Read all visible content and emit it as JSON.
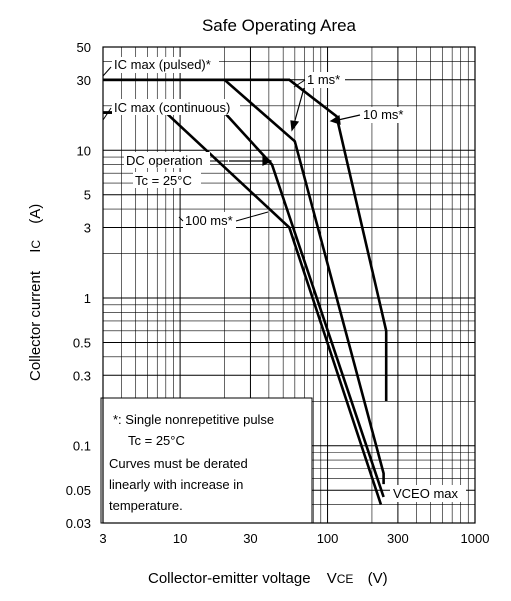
{
  "chart_data": {
    "type": "line",
    "title": "Safe Operating Area",
    "xlabel": {
      "text": "Collector-emitter voltage",
      "symbol": "V",
      "subscript": "CE",
      "unit": "(V)"
    },
    "ylabel": {
      "text": "Collector current",
      "symbol": "I",
      "subscript": "C",
      "unit": "(A)"
    },
    "x_scale": "log",
    "y_scale": "log",
    "xlim": [
      3,
      1000
    ],
    "ylim": [
      0.03,
      50
    ],
    "x_ticks": [
      {
        "value": 3,
        "label": "3"
      },
      {
        "value": 10,
        "label": "10"
      },
      {
        "value": 30,
        "label": "30"
      },
      {
        "value": 100,
        "label": "100"
      },
      {
        "value": 300,
        "label": "300"
      },
      {
        "value": 1000,
        "label": "1000"
      }
    ],
    "y_ticks": [
      {
        "value": 50,
        "label": "50"
      },
      {
        "value": 30,
        "label": "30"
      },
      {
        "value": 10,
        "label": "10"
      },
      {
        "value": 5,
        "label": "5"
      },
      {
        "value": 3,
        "label": "3"
      },
      {
        "value": 1,
        "label": "1"
      },
      {
        "value": 0.5,
        "label": "0.5"
      },
      {
        "value": 0.3,
        "label": "0.3"
      },
      {
        "value": 0.1,
        "label": "0.1"
      },
      {
        "value": 0.05,
        "label": "0.05"
      },
      {
        "value": 0.03,
        "label": "0.03"
      }
    ],
    "grid": true,
    "series": [
      {
        "points": [
          [
            3,
            30
          ],
          [
            55,
            30
          ],
          [
            115,
            17
          ],
          [
            250,
            0.6
          ],
          [
            250,
            0.2
          ]
        ]
      },
      {
        "points": [
          [
            3,
            30
          ],
          [
            20,
            30
          ],
          [
            60,
            11.5
          ],
          [
            240,
            0.065
          ],
          [
            240,
            0.055
          ]
        ]
      },
      {
        "points": [
          [
            3,
            18
          ],
          [
            20,
            18
          ],
          [
            42,
            8
          ],
          [
            240,
            0.045
          ]
        ]
      },
      {
        "points": [
          [
            3,
            18
          ],
          [
            8,
            18
          ],
          [
            55,
            3
          ],
          [
            230,
            0.04
          ]
        ]
      }
    ],
    "annotations": [
      {
        "id": "ic-pulsed",
        "text": "IC max (pulsed)*"
      },
      {
        "id": "ic-cont",
        "text": "IC max (continuous)"
      },
      {
        "id": "one-ms",
        "text": "1 ms*"
      },
      {
        "id": "ten-ms",
        "text": "10 ms*"
      },
      {
        "id": "dc-op",
        "text": "DC operation"
      },
      {
        "id": "tc-25",
        "text": "Tc = 25°C"
      },
      {
        "id": "hundred-ms",
        "text": "100 ms*"
      },
      {
        "id": "vceo-max",
        "text": "VCEO max"
      }
    ],
    "note": {
      "line1": "*:  Single nonrepetitive pulse",
      "line2": "Tc = 25°C",
      "line3": "Curves must be derated",
      "line4": "linearly with increase in",
      "line5": "temperature."
    }
  }
}
